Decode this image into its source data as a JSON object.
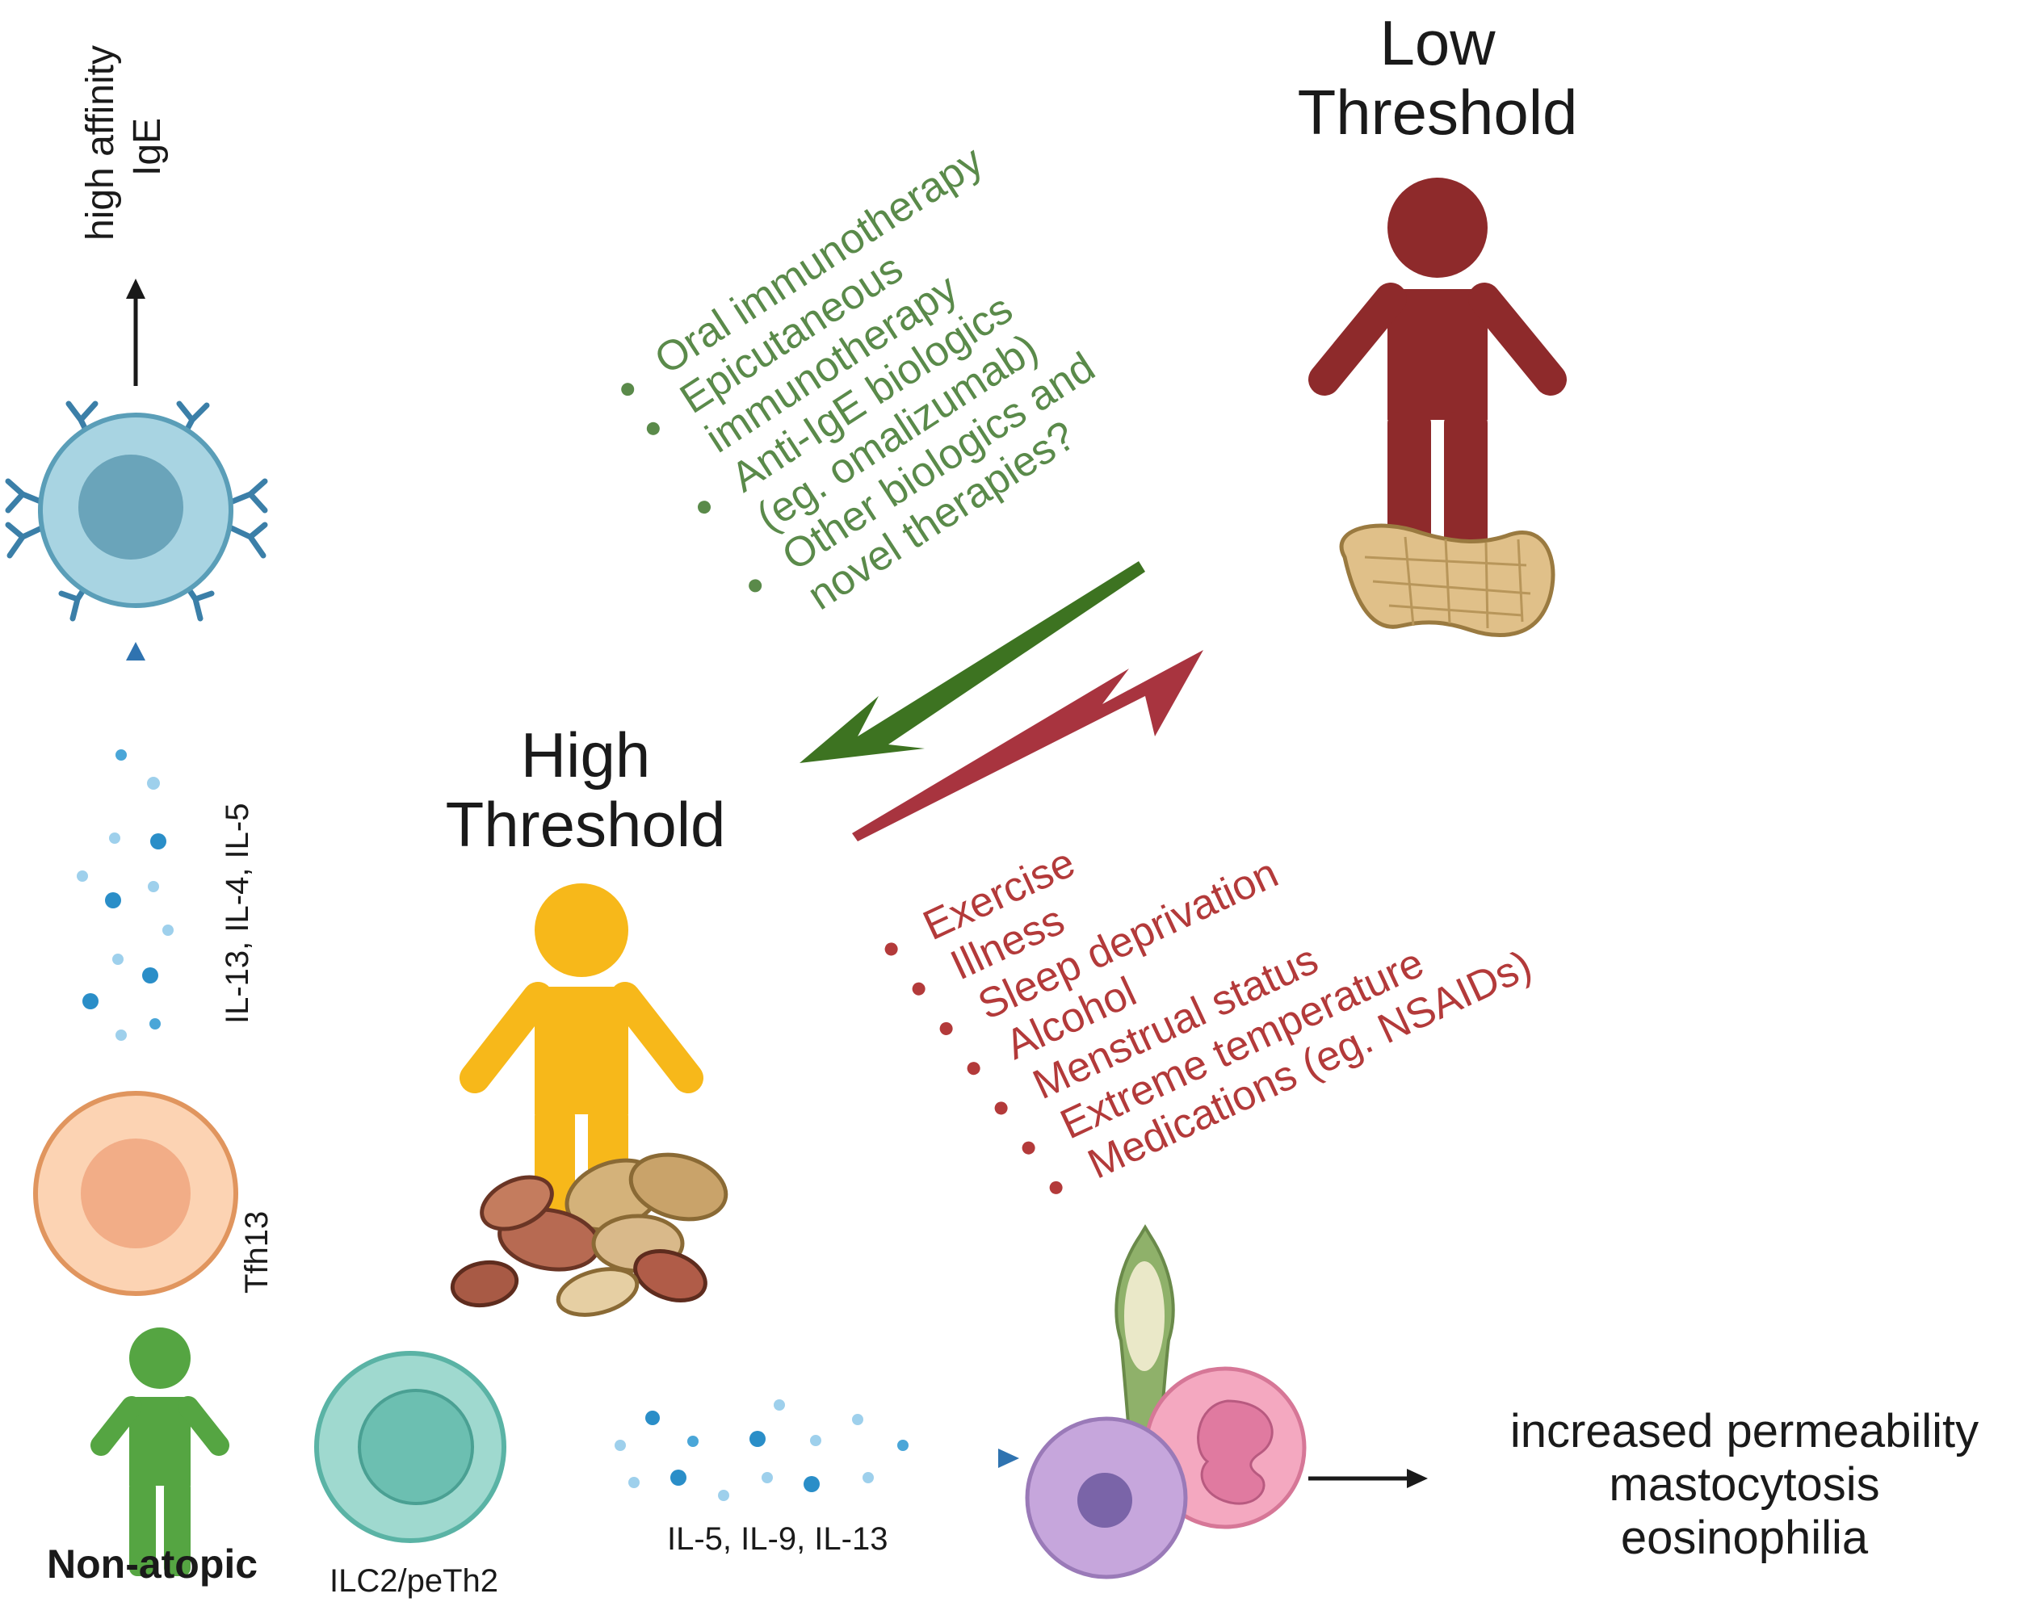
{
  "labels": {
    "low_threshold": [
      "Low",
      "Threshold"
    ],
    "high_threshold": [
      "High",
      "Threshold"
    ],
    "high_affinity_ige": [
      "high affinity",
      "IgE"
    ],
    "b_cell_cytokines": "IL-13, IL-4, IL-5",
    "tfh13": "Tfh13",
    "non_atopic": "Non-atopic",
    "ilc2": "ILC2/peTh2",
    "ilc2_cytokines": "IL-5, IL-9, IL-13",
    "outcomes": [
      "increased permeability",
      "mastocytosis",
      "eosinophilia"
    ]
  },
  "lowering_factors": [
    {
      "text": "Oral immunotherapy",
      "bullet": true
    },
    {
      "text": "Epicutaneous",
      "bullet": true
    },
    {
      "text": "immunotherapy",
      "bullet": false
    },
    {
      "text": "Anti-IgE biologics",
      "bullet": true
    },
    {
      "text": "(eg. omalizumab)",
      "bullet": false
    },
    {
      "text": "Other biologics and",
      "bullet": true
    },
    {
      "text": "novel therapies?",
      "bullet": false
    }
  ],
  "raising_factors": [
    "Exercise",
    "Illness",
    "Sleep deprivation",
    "Alcohol",
    "Menstrual status",
    "Extreme temperature",
    "Medications  (eg. NSAIDs)"
  ],
  "colors": {
    "low_person": "#8e2a2b",
    "high_person": "#f7b81a",
    "non_atopic_person": "#55a542",
    "green_arrow": "#3d7321",
    "red_arrow": "#a8343f",
    "cytokine_blue": "#2f73b0",
    "green_text": "#5a8a4a",
    "red_text": "#b33a3a"
  }
}
